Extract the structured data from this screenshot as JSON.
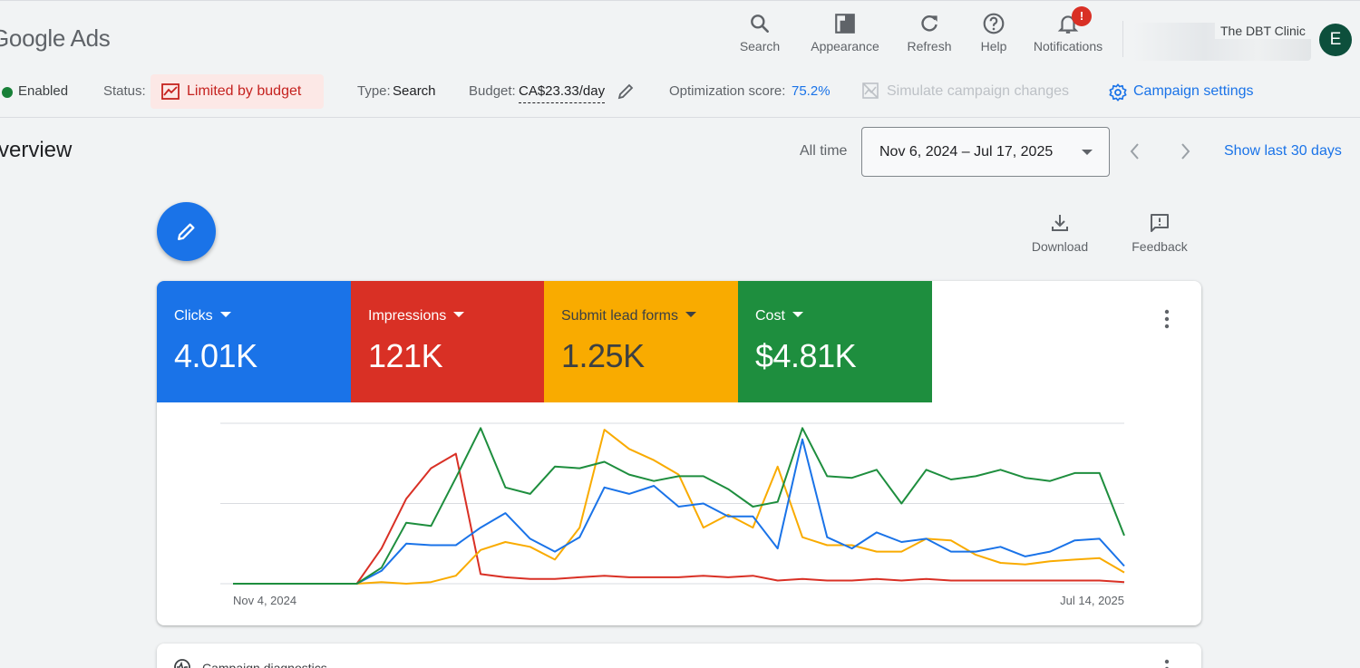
{
  "header": {
    "brand": "Google Ads",
    "tools": [
      {
        "label": "Search",
        "icon": "search-icon"
      },
      {
        "label": "Appearance",
        "icon": "appearance-icon"
      },
      {
        "label": "Refresh",
        "icon": "refresh-icon"
      },
      {
        "label": "Help",
        "icon": "help-icon"
      },
      {
        "label": "Notifications",
        "icon": "bell-icon"
      }
    ],
    "notification_badge": "!",
    "account_name": "The DBT Clinic",
    "avatar_letter": "E"
  },
  "status_bar": {
    "enabled": "Enabled",
    "status_label": "Status:",
    "status_value": "Limited by budget",
    "type_label": "Type:",
    "type_value": "Search",
    "budget_label": "Budget:",
    "budget_value": "CA$23.33/day",
    "optimization_label": "Optimization score:",
    "optimization_value": "75.2%",
    "simulate": "Simulate campaign changes",
    "settings": "Campaign settings"
  },
  "overview": {
    "title": "verview",
    "all_time": "All time",
    "date_range": "Nov 6, 2024 – Jul 17, 2025",
    "show_last": "Show last 30 days",
    "download": "Download",
    "feedback": "Feedback"
  },
  "metrics": [
    {
      "label": "Clicks",
      "value": "4.01K",
      "color": "#1a73e8"
    },
    {
      "label": "Impressions",
      "value": "121K",
      "color": "#d93025"
    },
    {
      "label": "Submit lead forms",
      "value": "1.25K",
      "color": "#f9ab00"
    },
    {
      "label": "Cost",
      "value": "$4.81K",
      "color": "#1e8e3e"
    }
  ],
  "diagnostics": {
    "title": "Campaign diagnostics"
  },
  "chart_data": {
    "type": "line",
    "x_start_label": "Nov 4, 2024",
    "x_end_label": "Jul 14, 2025",
    "grid": true,
    "ylim": [
      0,
      100
    ],
    "series": [
      {
        "name": "Clicks",
        "color": "#1a73e8",
        "values": [
          0,
          0,
          0,
          0,
          0,
          0,
          8,
          25,
          24,
          24,
          35,
          44,
          28,
          20,
          29,
          60,
          56,
          61,
          48,
          50,
          42,
          42,
          22,
          90,
          29,
          22,
          32,
          26,
          28,
          20,
          20,
          23,
          17,
          20,
          27,
          28,
          11
        ]
      },
      {
        "name": "Impressions",
        "color": "#d93025",
        "values": [
          0,
          0,
          0,
          0,
          0,
          0,
          22,
          53,
          72,
          81,
          6,
          4,
          3,
          3,
          4,
          5,
          4,
          4,
          4,
          5,
          4,
          5,
          2,
          3,
          2,
          2,
          3,
          2,
          3,
          2,
          2,
          2,
          2,
          2,
          2,
          2,
          1
        ]
      },
      {
        "name": "Submit lead forms",
        "color": "#f9ab00",
        "values": [
          0,
          0,
          0,
          0,
          0,
          0,
          1,
          0,
          1,
          5,
          21,
          26,
          23,
          15,
          35,
          96,
          84,
          77,
          68,
          35,
          43,
          35,
          73,
          29,
          24,
          24,
          20,
          20,
          28,
          27,
          18,
          13,
          12,
          14,
          15,
          16,
          7
        ]
      },
      {
        "name": "Cost",
        "color": "#1e8e3e",
        "values": [
          0,
          0,
          0,
          0,
          0,
          0,
          10,
          38,
          36,
          66,
          97,
          60,
          56,
          73,
          72,
          76,
          68,
          64,
          67,
          67,
          59,
          48,
          51,
          97,
          67,
          66,
          71,
          50,
          71,
          65,
          67,
          71,
          66,
          64,
          69,
          69,
          30
        ]
      }
    ]
  }
}
